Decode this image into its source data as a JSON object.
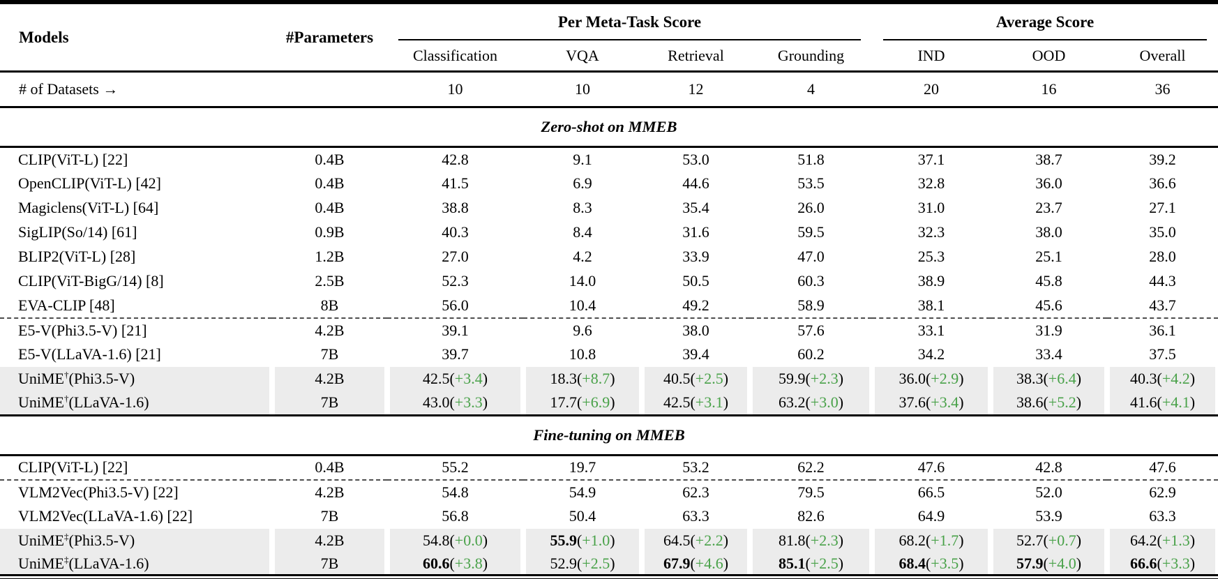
{
  "colors": {
    "delta_green": "#48a148",
    "highlight_gray": "#ececec",
    "rule_black": "#000000"
  },
  "table": {
    "header": {
      "models_label": "Models",
      "parameters_label": "#Parameters",
      "meta_task_group_label": "Per Meta-Task Score",
      "average_group_label": "Average Score",
      "sub_columns": [
        "Classification",
        "VQA",
        "Retrieval",
        "Grounding",
        "IND",
        "OOD",
        "Overall"
      ]
    },
    "datasets_row": {
      "label": "# of Datasets →",
      "counts": [
        "10",
        "10",
        "12",
        "4",
        "20",
        "16",
        "36"
      ]
    },
    "sections": [
      {
        "title": "Zero-shot on MMEB",
        "rows": [
          {
            "model": "CLIP(ViT-L) [22]",
            "params": "0.4B",
            "values": [
              {
                "v": "42.8"
              },
              {
                "v": "9.1"
              },
              {
                "v": "53.0"
              },
              {
                "v": "51.8"
              },
              {
                "v": "37.1"
              },
              {
                "v": "38.7"
              },
              {
                "v": "39.2"
              }
            ]
          },
          {
            "model": "OpenCLIP(ViT-L) [42]",
            "params": "0.4B",
            "values": [
              {
                "v": "41.5"
              },
              {
                "v": "6.9"
              },
              {
                "v": "44.6"
              },
              {
                "v": "53.5"
              },
              {
                "v": "32.8"
              },
              {
                "v": "36.0"
              },
              {
                "v": "36.6"
              }
            ]
          },
          {
            "model": "Magiclens(ViT-L) [64]",
            "params": "0.4B",
            "values": [
              {
                "v": "38.8"
              },
              {
                "v": "8.3"
              },
              {
                "v": "35.4"
              },
              {
                "v": "26.0"
              },
              {
                "v": "31.0"
              },
              {
                "v": "23.7"
              },
              {
                "v": "27.1"
              }
            ]
          },
          {
            "model": "SigLIP(So/14) [61]",
            "params": "0.9B",
            "values": [
              {
                "v": "40.3"
              },
              {
                "v": "8.4"
              },
              {
                "v": "31.6"
              },
              {
                "v": "59.5"
              },
              {
                "v": "32.3"
              },
              {
                "v": "38.0"
              },
              {
                "v": "35.0"
              }
            ]
          },
          {
            "model": "BLIP2(ViT-L) [28]",
            "params": "1.2B",
            "values": [
              {
                "v": "27.0"
              },
              {
                "v": "4.2"
              },
              {
                "v": "33.9"
              },
              {
                "v": "47.0"
              },
              {
                "v": "25.3"
              },
              {
                "v": "25.1"
              },
              {
                "v": "28.0"
              }
            ]
          },
          {
            "model": "CLIP(ViT-BigG/14) [8]",
            "params": "2.5B",
            "values": [
              {
                "v": "52.3"
              },
              {
                "v": "14.0"
              },
              {
                "v": "50.5"
              },
              {
                "v": "60.3"
              },
              {
                "v": "38.9"
              },
              {
                "v": "45.8"
              },
              {
                "v": "44.3"
              }
            ]
          },
          {
            "model": "EVA-CLIP [48]",
            "params": "8B",
            "dashed_after": true,
            "values": [
              {
                "v": "56.0"
              },
              {
                "v": "10.4"
              },
              {
                "v": "49.2"
              },
              {
                "v": "58.9"
              },
              {
                "v": "38.1"
              },
              {
                "v": "45.6"
              },
              {
                "v": "43.7"
              }
            ]
          },
          {
            "model": "E5-V(Phi3.5-V) [21]",
            "params": "4.2B",
            "values": [
              {
                "v": "39.1"
              },
              {
                "v": "9.6"
              },
              {
                "v": "38.0"
              },
              {
                "v": "57.6"
              },
              {
                "v": "33.1"
              },
              {
                "v": "31.9"
              },
              {
                "v": "36.1"
              }
            ]
          },
          {
            "model": "E5-V(LLaVA-1.6) [21]",
            "params": "7B",
            "values": [
              {
                "v": "39.7"
              },
              {
                "v": "10.8"
              },
              {
                "v": "39.4"
              },
              {
                "v": "60.2"
              },
              {
                "v": "34.2"
              },
              {
                "v": "33.4"
              },
              {
                "v": "37.5"
              }
            ]
          },
          {
            "model_pre": "UniME",
            "model_sup": "†",
            "model_post": "(Phi3.5-V)",
            "params": "4.2B",
            "highlight": true,
            "values": [
              {
                "v": "42.5",
                "d": "+3.4"
              },
              {
                "v": "18.3",
                "d": "+8.7"
              },
              {
                "v": "40.5",
                "d": "+2.5"
              },
              {
                "v": "59.9",
                "d": "+2.3"
              },
              {
                "v": "36.0",
                "d": "+2.9"
              },
              {
                "v": "38.3",
                "d": "+6.4"
              },
              {
                "v": "40.3",
                "d": "+4.2"
              }
            ]
          },
          {
            "model_pre": "UniME",
            "model_sup": "†",
            "model_post": "(LLaVA-1.6)",
            "params": "7B",
            "highlight": true,
            "values": [
              {
                "v": "43.0",
                "d": "+3.3"
              },
              {
                "v": "17.7",
                "d": "+6.9"
              },
              {
                "v": "42.5",
                "d": "+3.1"
              },
              {
                "v": "63.2",
                "d": "+3.0"
              },
              {
                "v": "37.6",
                "d": "+3.4"
              },
              {
                "v": "38.6",
                "d": "+5.2"
              },
              {
                "v": "41.6",
                "d": "+4.1"
              }
            ]
          }
        ]
      },
      {
        "title": "Fine-tuning on MMEB",
        "rows": [
          {
            "model": "CLIP(ViT-L) [22]",
            "params": "0.4B",
            "dashed_after": true,
            "values": [
              {
                "v": "55.2"
              },
              {
                "v": "19.7"
              },
              {
                "v": "53.2"
              },
              {
                "v": "62.2"
              },
              {
                "v": "47.6"
              },
              {
                "v": "42.8"
              },
              {
                "v": "47.6"
              }
            ]
          },
          {
            "model": "VLM2Vec(Phi3.5-V) [22]",
            "params": "4.2B",
            "values": [
              {
                "v": "54.8"
              },
              {
                "v": "54.9"
              },
              {
                "v": "62.3"
              },
              {
                "v": "79.5"
              },
              {
                "v": "66.5"
              },
              {
                "v": "52.0"
              },
              {
                "v": "62.9"
              }
            ]
          },
          {
            "model": "VLM2Vec(LLaVA-1.6) [22]",
            "params": "7B",
            "values": [
              {
                "v": "56.8"
              },
              {
                "v": "50.4"
              },
              {
                "v": "63.3"
              },
              {
                "v": "82.6"
              },
              {
                "v": "64.9"
              },
              {
                "v": "53.9"
              },
              {
                "v": "63.3"
              }
            ]
          },
          {
            "model_pre": "UniME",
            "model_sup": "‡",
            "model_post": "(Phi3.5-V)",
            "params": "4.2B",
            "highlight": true,
            "values": [
              {
                "v": "54.8",
                "d": "+0.0"
              },
              {
                "v": "55.9",
                "d": "+1.0",
                "b": true
              },
              {
                "v": "64.5",
                "d": "+2.2"
              },
              {
                "v": "81.8",
                "d": "+2.3"
              },
              {
                "v": "68.2",
                "d": "+1.7"
              },
              {
                "v": "52.7",
                "d": "+0.7"
              },
              {
                "v": "64.2",
                "d": "+1.3"
              }
            ]
          },
          {
            "model_pre": "UniME",
            "model_sup": "‡",
            "model_post": "(LLaVA-1.6)",
            "params": "7B",
            "highlight": true,
            "values": [
              {
                "v": "60.6",
                "d": "+3.8",
                "b": true
              },
              {
                "v": "52.9",
                "d": "+2.5"
              },
              {
                "v": "67.9",
                "d": "+4.6",
                "b": true
              },
              {
                "v": "85.1",
                "d": "+2.5",
                "b": true
              },
              {
                "v": "68.4",
                "d": "+3.5",
                "b": true
              },
              {
                "v": "57.9",
                "d": "+4.0",
                "b": true
              },
              {
                "v": "66.6",
                "d": "+3.3",
                "b": true
              }
            ]
          }
        ]
      }
    ]
  }
}
